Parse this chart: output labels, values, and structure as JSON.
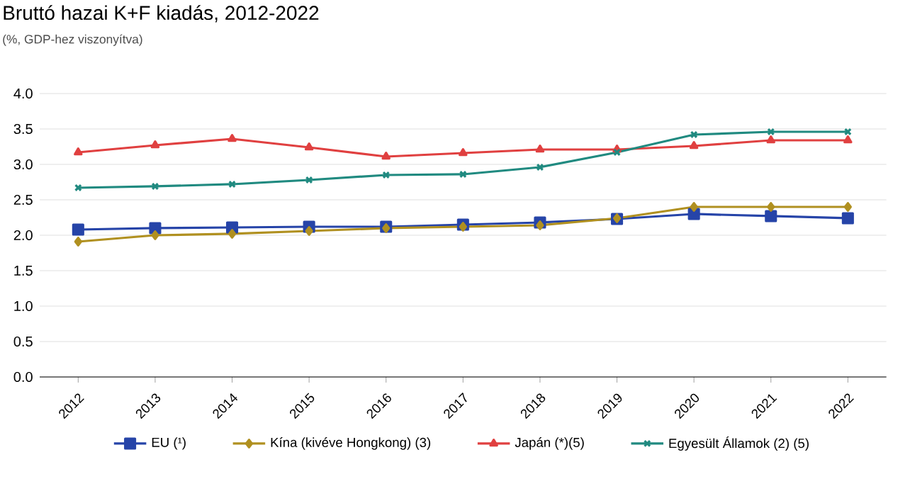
{
  "chart_data": {
    "type": "line",
    "title": "Bruttó hazai K+F kiadás, 2012-2022",
    "subtitle": "(%, GDP-hez viszonyítva)",
    "categories": [
      "2012",
      "2013",
      "2014",
      "2015",
      "2016",
      "2017",
      "2018",
      "2019",
      "2020",
      "2021",
      "2022"
    ],
    "ylim": [
      0,
      4
    ],
    "yticks": [
      {
        "value": 0,
        "label": "0.0"
      },
      {
        "value": 0.5,
        "label": "0.5"
      },
      {
        "value": 1,
        "label": "1.0"
      },
      {
        "value": 1.5,
        "label": "1.5"
      },
      {
        "value": 2,
        "label": "2.0"
      },
      {
        "value": 2.5,
        "label": "2.5"
      },
      {
        "value": 3,
        "label": "3.0"
      },
      {
        "value": 3.5,
        "label": "3.5"
      },
      {
        "value": 4,
        "label": "4.0"
      }
    ],
    "grid": "y",
    "legend": "bottom",
    "line_style": "solid",
    "series": [
      {
        "name": "EU (¹)",
        "color": "#2644a8",
        "marker": "square",
        "values": [
          2.08,
          2.1,
          2.11,
          2.12,
          2.12,
          2.15,
          2.18,
          2.23,
          2.3,
          2.27,
          2.24
        ]
      },
      {
        "name": "Kína (kivéve Hongkong) (3)",
        "color": "#b09020",
        "marker": "diamond",
        "values": [
          1.91,
          2.0,
          2.02,
          2.06,
          2.1,
          2.12,
          2.14,
          2.24,
          2.4,
          2.4,
          2.4
        ]
      },
      {
        "name": "Japán (*)(5)",
        "color": "#e04040",
        "marker": "triangle",
        "values": [
          3.17,
          3.27,
          3.36,
          3.24,
          3.11,
          3.16,
          3.21,
          3.21,
          3.26,
          3.34,
          3.34
        ]
      },
      {
        "name": "Egyesült Államok (2) (5)",
        "color": "#208a80",
        "marker": "cross",
        "values": [
          2.67,
          2.69,
          2.72,
          2.78,
          2.85,
          2.86,
          2.96,
          3.17,
          3.42,
          3.46,
          3.46
        ]
      }
    ]
  }
}
